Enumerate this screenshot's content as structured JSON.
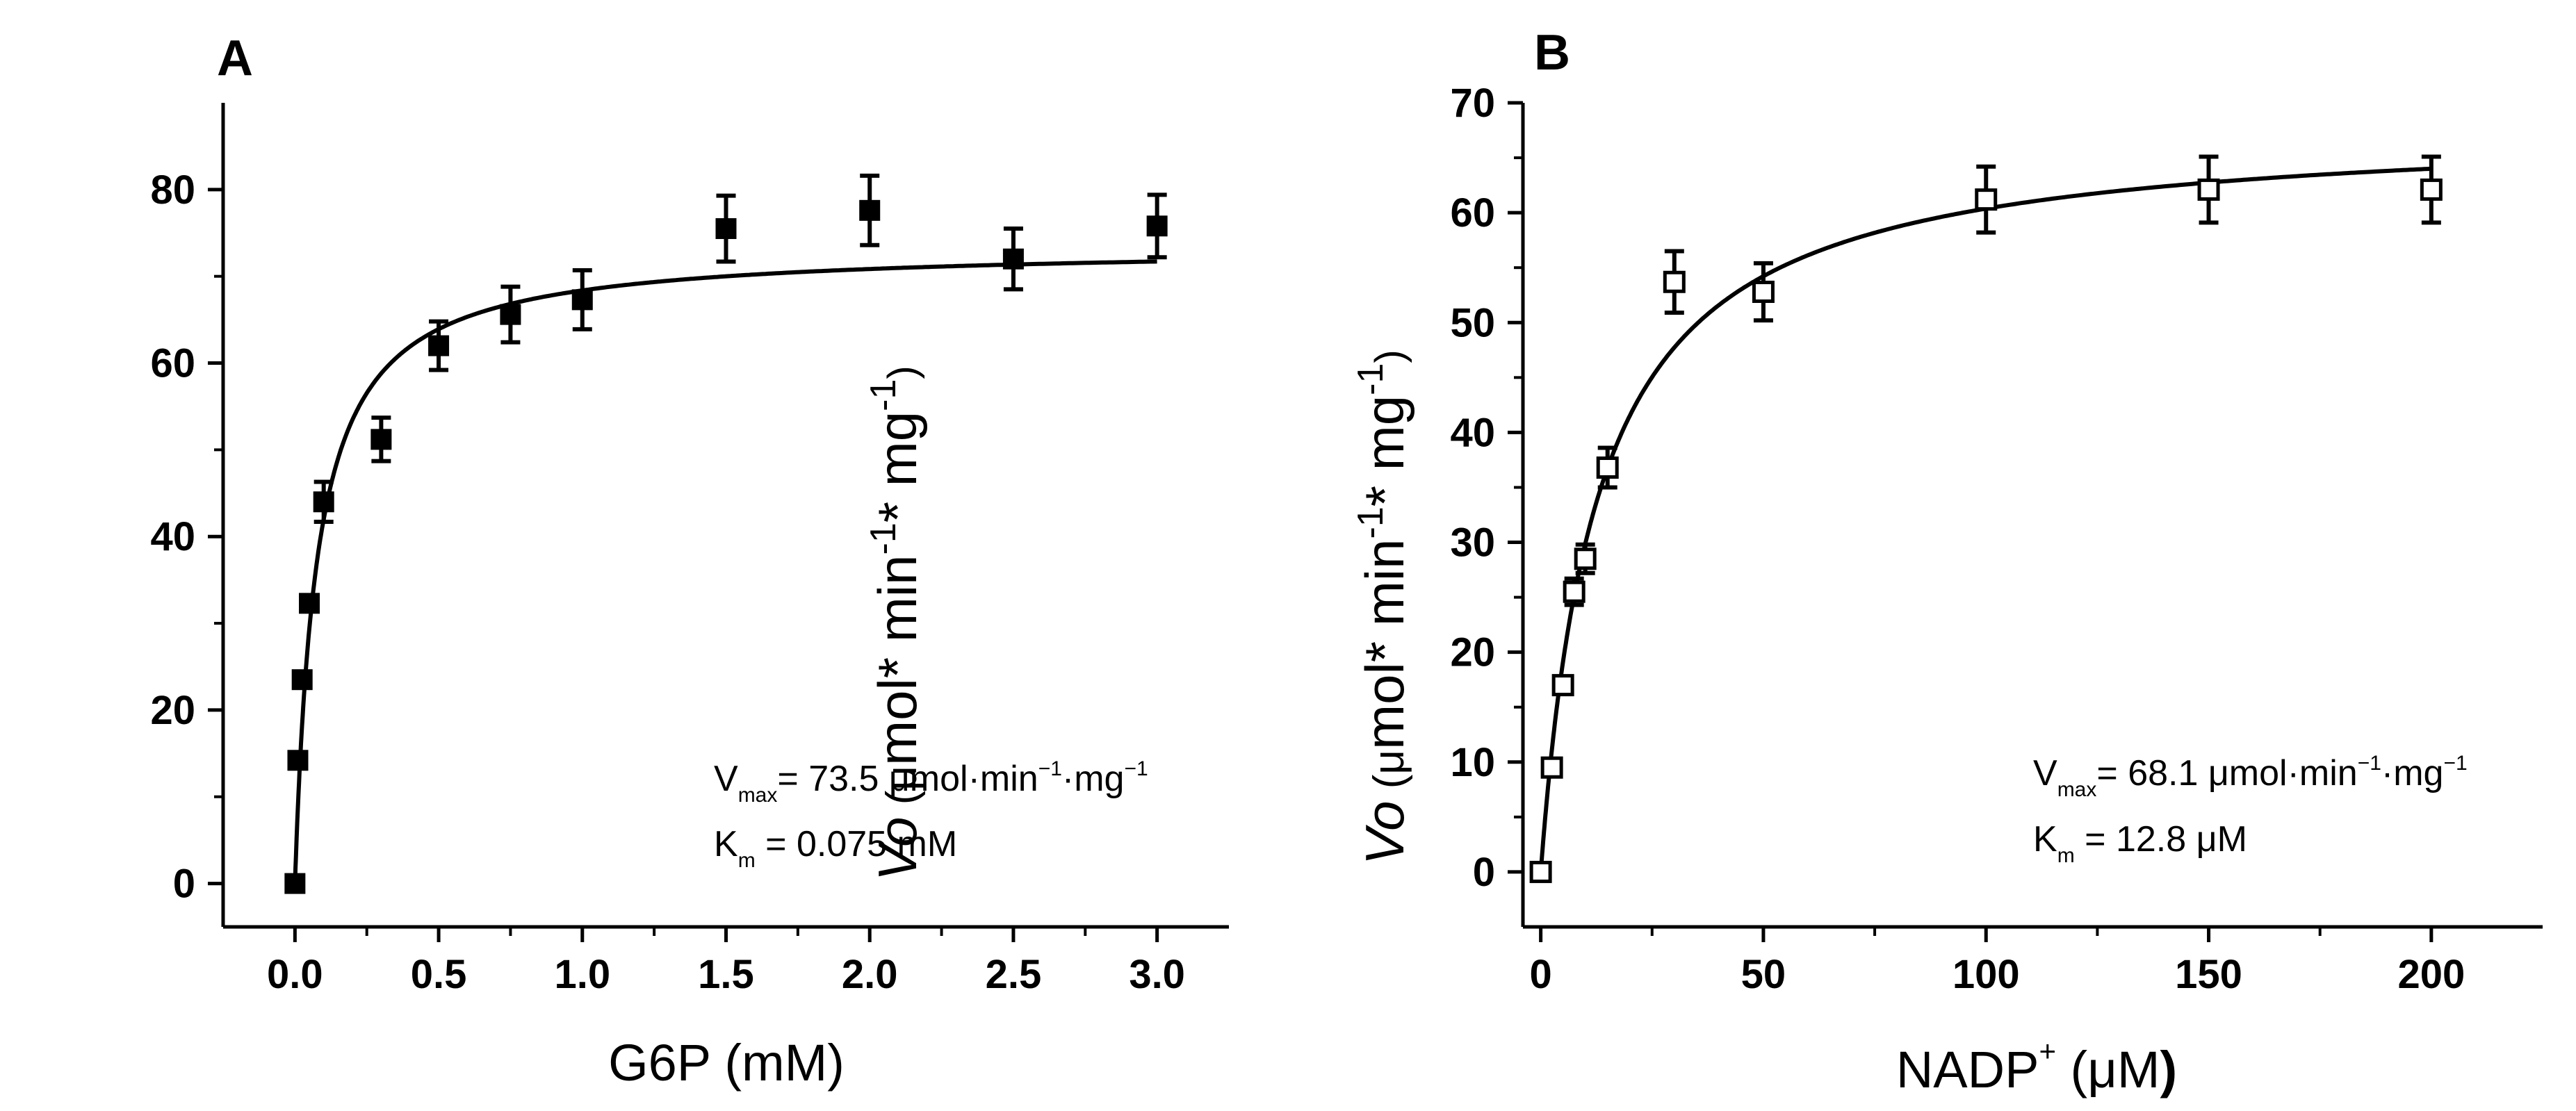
{
  "chart_data": [
    {
      "panel": "A",
      "type": "scatter",
      "xlabel": "G6P (mM)",
      "ylabel": "Vo (μmol* min-1* mg-1)",
      "ylabel_parts": {
        "italic": "Vo",
        "open": " (",
        "mu": "μ",
        "unit1": "mol* min",
        "exp1": "-1",
        "unit2": "* mg",
        "exp2": "-1",
        "close": ")"
      },
      "xlim": [
        -0.25,
        3.25
      ],
      "ylim": [
        -5,
        90
      ],
      "x_ticks": [
        0.0,
        0.5,
        1.0,
        1.5,
        2.0,
        2.5,
        3.0
      ],
      "x_tick_labels": [
        "0.0",
        "0.5",
        "1.0",
        "1.5",
        "2.0",
        "2.5",
        "3.0"
      ],
      "y_ticks": [
        0,
        20,
        40,
        60,
        80
      ],
      "y_tick_labels": [
        "0",
        "20",
        "40",
        "60",
        "80"
      ],
      "marker": "filled-square",
      "x": [
        0.0,
        0.01,
        0.025,
        0.05,
        0.1,
        0.3,
        0.5,
        0.75,
        1.0,
        1.5,
        2.0,
        2.5,
        3.0
      ],
      "y": [
        0,
        14.2,
        23.5,
        32.3,
        44.0,
        51.2,
        62.0,
        65.6,
        67.3,
        75.5,
        77.6,
        72.0,
        75.8
      ],
      "err": [
        0,
        0,
        0,
        0,
        2.3,
        2.5,
        2.8,
        3.2,
        3.4,
        3.8,
        4.0,
        3.5,
        3.6
      ],
      "fit": {
        "model": "michaelis-menten",
        "vmax": 73.5,
        "km": 0.075
      },
      "annotation": {
        "vmax_prefix": "V",
        "vmax_sub": "max",
        "vmax_text": "= 73.5 μmol·min",
        "vmax_sup1": "−1",
        "vmax_mid": "·mg",
        "vmax_sup2": "−1",
        "km_prefix": "K",
        "km_sub": "m",
        "km_text": " = 0.075 mM"
      }
    },
    {
      "panel": "B",
      "type": "scatter",
      "xlabel": "NADP+ (μM)",
      "xlabel_parts": {
        "name": "NADP",
        "sup": "+",
        "open": " (",
        "mu": "μ",
        "unit": "M",
        "close": ")"
      },
      "ylabel": "Vo (μmol* min-1* mg-1)",
      "ylabel_parts": {
        "italic": "Vo",
        "open": " (",
        "mu": "μ",
        "unit1": "mol* min",
        "exp1": "-1",
        "unit2": "* mg",
        "exp2": "-1",
        "close": ")"
      },
      "xlim": [
        -4,
        225
      ],
      "ylim": [
        -5,
        70
      ],
      "x_ticks": [
        0,
        50,
        100,
        150,
        200
      ],
      "x_tick_labels": [
        "0",
        "50",
        "100",
        "150",
        "200"
      ],
      "y_ticks": [
        0,
        10,
        20,
        30,
        40,
        50,
        60,
        70
      ],
      "y_tick_labels": [
        "0",
        "10",
        "20",
        "30",
        "40",
        "50",
        "60",
        "70"
      ],
      "marker": "open-square",
      "x": [
        0,
        2.5,
        5,
        7.5,
        10,
        15,
        30,
        50,
        100,
        150,
        200
      ],
      "y": [
        0,
        9.5,
        17.0,
        25.5,
        28.5,
        36.8,
        53.7,
        52.8,
        61.2,
        62.1,
        62.1
      ],
      "err": [
        0,
        0,
        0,
        1.2,
        1.3,
        1.8,
        2.8,
        2.6,
        3.0,
        3.0,
        3.0
      ],
      "fit": {
        "model": "michaelis-menten",
        "vmax": 68.1,
        "km": 12.8
      },
      "annotation": {
        "vmax_prefix": "V",
        "vmax_sub": "max",
        "vmax_text": "= 68.1 μmol·min",
        "vmax_sup1": "−1",
        "vmax_mid": "·mg",
        "vmax_sup2": "−1",
        "km_prefix": "K",
        "km_sub": "m",
        "km_text": " = 12.8  μM"
      }
    }
  ]
}
